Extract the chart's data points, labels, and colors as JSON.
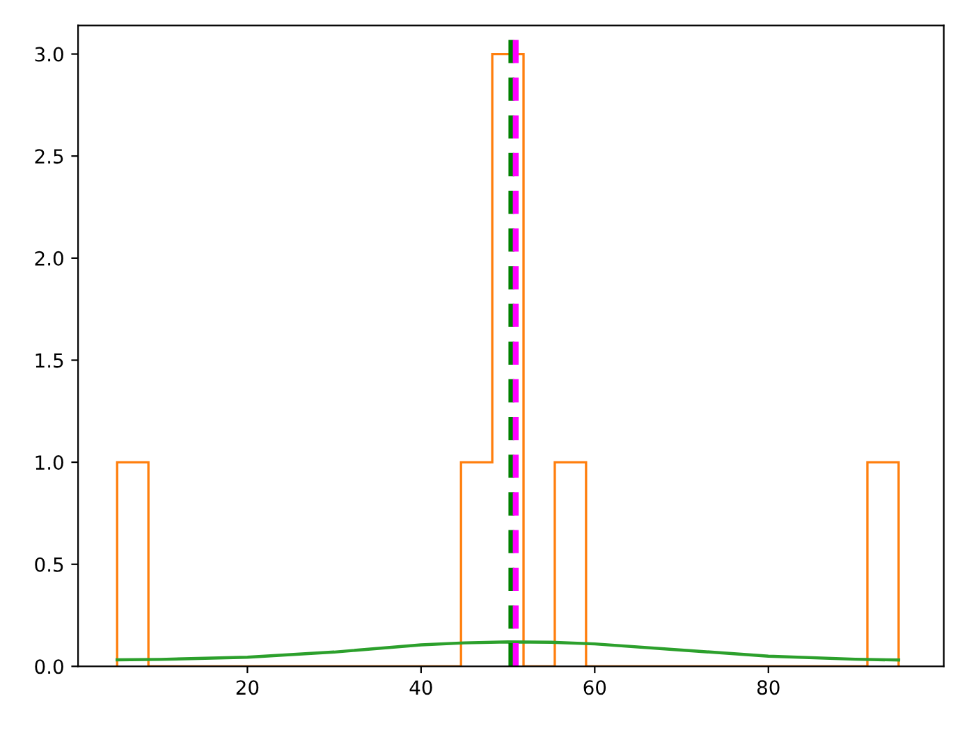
{
  "chart_data": {
    "type": "histogram",
    "bins": [
      5,
      8.6,
      12.2,
      15.8,
      19.4,
      23,
      26.6,
      30.2,
      33.8,
      37.4,
      41,
      44.6,
      48.2,
      51.8,
      55.4,
      59,
      62.6,
      66.2,
      69.8,
      73.4,
      77,
      80.6,
      84.2,
      87.8,
      91.4,
      95
    ],
    "values": [
      1,
      0,
      0,
      0,
      0,
      0,
      0,
      0,
      0,
      0,
      0,
      1,
      3,
      0,
      1,
      0,
      0,
      0,
      0,
      0,
      0,
      0,
      0,
      0,
      1
    ],
    "color": "#ff7f0e",
    "series": [
      {
        "type": "line",
        "color": "#2ca02c",
        "x": [
          5,
          10,
          20,
          30,
          40,
          45,
          50,
          55,
          60,
          70,
          80,
          90,
          95
        ],
        "values": [
          0.032,
          0.034,
          0.045,
          0.07,
          0.105,
          0.115,
          0.12,
          0.118,
          0.11,
          0.08,
          0.05,
          0.035,
          0.031
        ]
      }
    ],
    "ref_lines": [
      {
        "axis": "x",
        "value": 50.4,
        "color": "#008000",
        "line_style": "dashed"
      },
      {
        "axis": "x",
        "value": 50.9,
        "color": "#ff00ff",
        "line_style": "dashed"
      }
    ],
    "xlim": [
      0.5,
      100.2
    ],
    "xticks": [
      20,
      40,
      60,
      80
    ],
    "ylim": [
      0,
      3.14
    ],
    "yticks": [
      {
        "value": 0,
        "label": "0.0"
      },
      {
        "value": 0.5,
        "label": "0.5"
      },
      {
        "value": 1,
        "label": "1.0"
      },
      {
        "value": 1.5,
        "label": "1.5"
      },
      {
        "value": 2,
        "label": "2.0"
      },
      {
        "value": 2.5,
        "label": "2.5"
      },
      {
        "value": 3,
        "label": "3.0"
      }
    ],
    "grid": false,
    "legend": false
  }
}
